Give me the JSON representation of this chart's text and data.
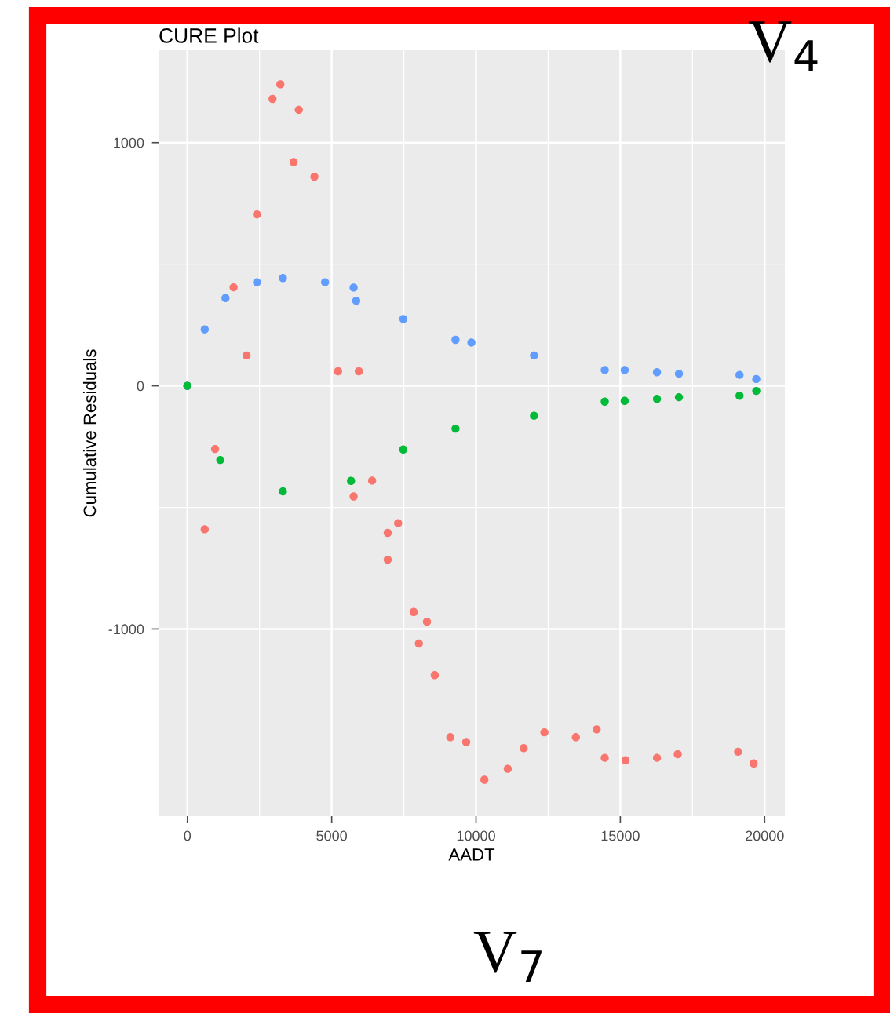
{
  "chart_data": {
    "type": "scatter",
    "title": "CURE Plot",
    "xlabel": "AADT",
    "ylabel": "Cumulative Residuals",
    "annotations": [
      "V$_{4}$",
      "V$_{7}$"
    ],
    "xlim": [
      -1000,
      20700
    ],
    "ylim": [
      -1770,
      1380
    ],
    "xticks": [
      0,
      5000,
      10000,
      15000,
      20000
    ],
    "yticks": [
      {
        "value": -1000,
        "label": "-1000"
      },
      0,
      1000
    ],
    "grid": true,
    "marker": "circle",
    "series": [
      {
        "color": "#f8766d",
        "x": [
          0,
          600,
          960,
          1600,
          2050,
          2410,
          2950,
          3220,
          3680,
          3860,
          4400,
          5220,
          5760,
          5940,
          6400,
          6940,
          6940,
          7300,
          7840,
          8020,
          8300,
          8570,
          9110,
          9660,
          10290,
          11100,
          11650,
          12370,
          13460,
          14180,
          14460,
          15180,
          16270,
          16990,
          19080,
          19620
        ],
        "values": [
          0,
          -590,
          -260,
          405,
          125,
          705,
          1180,
          1240,
          920,
          1135,
          860,
          60,
          -455,
          60,
          -390,
          -605,
          -715,
          -565,
          -930,
          -1060,
          -970,
          -1190,
          -1445,
          -1465,
          -1620,
          -1575,
          -1490,
          -1425,
          -1445,
          -1413,
          -1530,
          -1540,
          -1530,
          -1515,
          -1505,
          -1553
        ]
      },
      {
        "color": "#619cff",
        "x": [
          0,
          600,
          1320,
          2410,
          3310,
          4770,
          5760,
          5850,
          7480,
          9290,
          9840,
          12010,
          14460,
          15150,
          16270,
          17030,
          19130,
          19710
        ],
        "values": [
          0,
          232,
          361,
          426,
          443,
          426,
          404,
          350,
          275,
          189,
          178,
          125,
          65,
          65,
          56,
          50,
          45,
          28
        ]
      },
      {
        "color": "#00ba38",
        "x": [
          0,
          1140,
          3310,
          5670,
          7480,
          9290,
          12010,
          14460,
          15150,
          16270,
          17030,
          19130,
          19710
        ],
        "values": [
          0,
          -305,
          -434,
          -391,
          -262,
          -176,
          -123,
          -65,
          -62,
          -54,
          -47,
          -41,
          -21
        ]
      }
    ]
  }
}
